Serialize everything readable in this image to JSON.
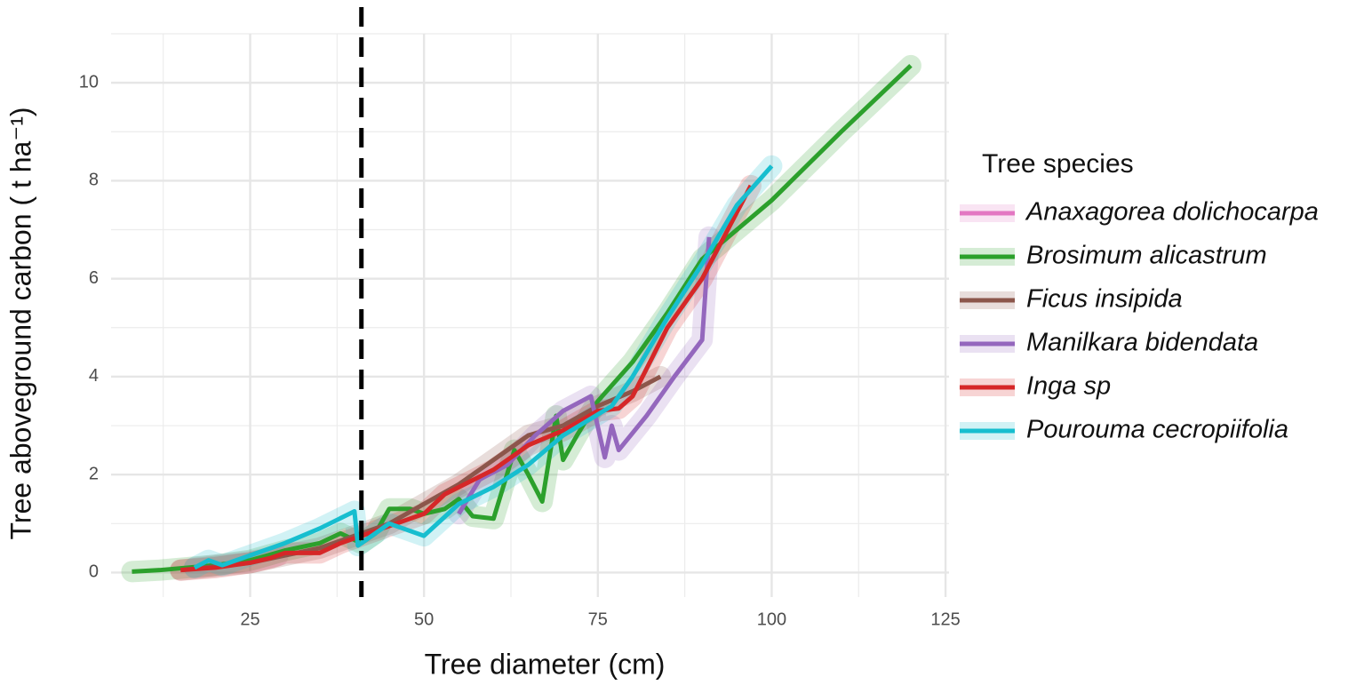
{
  "chart_data": {
    "type": "line",
    "x_label": "Tree diameter (cm)",
    "y_label": "Tree aboveground carbon ( t ha⁻¹)",
    "legend_title": "Tree species",
    "xlim": [
      5,
      125.5
    ],
    "ylim": [
      -0.5,
      11
    ],
    "xticks": [
      25,
      50,
      75,
      100,
      125
    ],
    "yticks": [
      0,
      2,
      4,
      6,
      8,
      10
    ],
    "grid": true,
    "reference_x": 41,
    "legend": "right",
    "series": [
      {
        "name": "Anaxagorea dolichocarpa",
        "color": "#e377c2",
        "x": [
          17,
          20,
          23,
          26,
          29
        ],
        "values": [
          0.1,
          0.15,
          0.2,
          0.25,
          0.35
        ]
      },
      {
        "name": "Brosimum alicastrum",
        "color": "#2ca02c",
        "x": [
          8,
          12,
          20,
          25,
          30,
          35,
          38,
          41,
          43,
          45,
          48,
          50,
          53,
          55,
          57,
          60,
          63,
          65,
          67,
          69,
          70,
          72,
          75,
          80,
          85,
          90,
          100,
          110,
          120
        ],
        "values": [
          0.02,
          0.05,
          0.15,
          0.25,
          0.45,
          0.6,
          0.8,
          0.6,
          0.8,
          1.3,
          1.3,
          1.2,
          1.3,
          1.5,
          1.15,
          1.1,
          2.5,
          2.0,
          1.45,
          3.2,
          2.3,
          2.8,
          3.5,
          4.3,
          5.3,
          6.4,
          7.6,
          9.0,
          10.35
        ]
      },
      {
        "name": "Ficus insipida",
        "color": "#8c564b",
        "x": [
          15,
          25,
          35,
          45,
          55,
          65,
          70,
          75,
          80,
          84
        ],
        "values": [
          0.05,
          0.2,
          0.5,
          1.0,
          1.8,
          2.8,
          3.0,
          3.4,
          3.7,
          4.0
        ]
      },
      {
        "name": "Manilkara bidendata",
        "color": "#9467bd",
        "x": [
          55,
          58,
          62,
          66,
          70,
          74,
          76,
          77,
          78,
          82,
          86,
          90,
          91
        ],
        "values": [
          1.2,
          1.9,
          2.2,
          2.8,
          3.3,
          3.6,
          2.35,
          3.0,
          2.5,
          3.2,
          4.0,
          4.75,
          6.85
        ]
      },
      {
        "name": "Inga sp",
        "color": "#d62728",
        "x": [
          15,
          20,
          25,
          28,
          30,
          35,
          38,
          42,
          45,
          50,
          53,
          60,
          65,
          70,
          75,
          78,
          80,
          85,
          90,
          97
        ],
        "values": [
          0.05,
          0.1,
          0.2,
          0.3,
          0.4,
          0.4,
          0.6,
          0.8,
          0.95,
          1.2,
          1.6,
          2.1,
          2.6,
          2.9,
          3.3,
          3.35,
          3.6,
          5.0,
          6.0,
          7.9
        ]
      },
      {
        "name": "Pourouma cecropiifolia",
        "color": "#17becf",
        "x": [
          17,
          19,
          21,
          25,
          30,
          35,
          40,
          40.5,
          42,
          45,
          50,
          55,
          60,
          65,
          70,
          77,
          80,
          85,
          90,
          95,
          100
        ],
        "values": [
          0.1,
          0.25,
          0.15,
          0.35,
          0.6,
          0.9,
          1.25,
          0.55,
          0.7,
          1.0,
          0.75,
          1.4,
          1.75,
          2.2,
          2.8,
          3.4,
          4.0,
          5.2,
          6.3,
          7.5,
          8.3
        ]
      }
    ]
  }
}
